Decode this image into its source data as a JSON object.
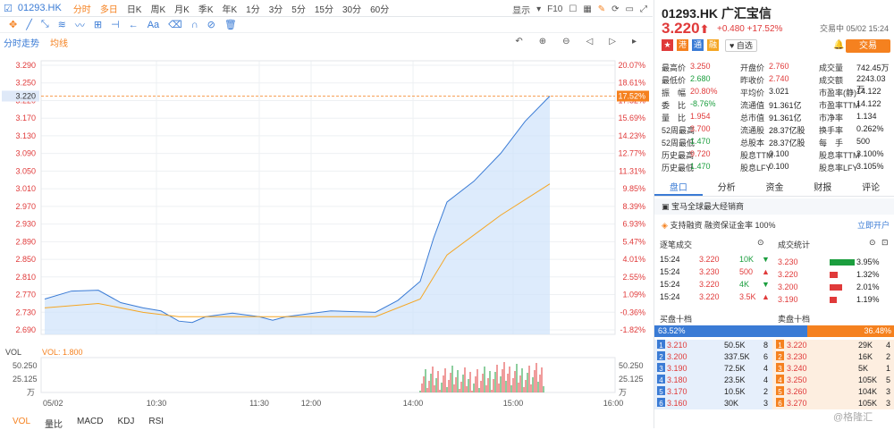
{
  "toolbar": {
    "symbol": "01293.HK",
    "periods": [
      "分时",
      "多日",
      "日K",
      "周K",
      "月K",
      "季K",
      "年K",
      "1分",
      "3分",
      "5分",
      "15分",
      "30分",
      "60分"
    ],
    "active": [
      "分时",
      "多日"
    ],
    "display_label": "显示",
    "f10_label": "F10"
  },
  "subtabs": {
    "intraday": "分时走势",
    "avg": "均线"
  },
  "chart": {
    "y_left": [
      "3.290",
      "3.250",
      "3.220",
      "3.170",
      "3.130",
      "3.090",
      "3.050",
      "3.010",
      "2.970",
      "2.930",
      "2.890",
      "2.850",
      "2.810",
      "2.770",
      "2.730",
      "2.690"
    ],
    "y_right": [
      "20.07%",
      "18.61%",
      "17.52%",
      "15.69%",
      "14.23%",
      "12.77%",
      "11.31%",
      "9.85%",
      "8.39%",
      "6.93%",
      "5.47%",
      "4.01%",
      "2.55%",
      "1.09%",
      "-0.36%",
      "-1.82%"
    ],
    "x_labels": [
      "05/02",
      "10:30",
      "11:30",
      "12:00",
      "14:00",
      "15:00",
      "16:00"
    ],
    "vol_title": "VOL",
    "vol_value": "VOL: 1.800",
    "vol_y": [
      "50.250",
      "25.125",
      "万"
    ],
    "indicators": [
      "VOL",
      "量比",
      "MACD",
      "KDJ",
      "RSI"
    ],
    "chart_data": {
      "type": "line",
      "x": [
        "09:30",
        "10:00",
        "10:30",
        "11:00",
        "11:30",
        "12:00",
        "13:00",
        "13:30",
        "14:00",
        "14:30",
        "15:00",
        "15:24"
      ],
      "series": [
        {
          "values": [
            2.76,
            2.78,
            2.74,
            2.71,
            2.72,
            2.72,
            2.72,
            2.73,
            2.8,
            2.98,
            3.09,
            3.22
          ]
        },
        {
          "values": [
            2.74,
            2.75,
            2.73,
            2.72,
            2.72,
            2.72,
            2.72,
            2.72,
            2.76,
            2.86,
            2.95,
            3.021
          ]
        }
      ],
      "ylim": [
        2.68,
        3.3
      ],
      "prev_close": 2.74,
      "last": 3.22
    }
  },
  "right": {
    "title": "01293.HK 广汇宝信",
    "status": "交易中 05/02 15:24",
    "price": "3.220",
    "change": "+0.480 +17.52%",
    "watch": "自选",
    "trade": "交易",
    "quote": [
      [
        "最高价",
        "3.250",
        "开盘价",
        "2.760",
        "成交量",
        "742.45万"
      ],
      [
        "最低价",
        "2.680",
        "昨收价",
        "2.740",
        "成交额",
        "2243.03万"
      ],
      [
        "振　幅",
        "20.80%",
        "平均价",
        "3.021",
        "市盈率(静)",
        "14.122"
      ],
      [
        "委　比",
        "-8.76%",
        "流通值",
        "91.361亿",
        "市盈率TTM",
        "14.122"
      ],
      [
        "量　比",
        "1.954",
        "总市值",
        "91.361亿",
        "市净率",
        "1.134"
      ],
      [
        "52周最高",
        "3.700",
        "流通股",
        "28.37亿股",
        "换手率",
        "0.262%"
      ],
      [
        "52周最低",
        "1.470",
        "总股本",
        "28.37亿股",
        "每　手",
        "500"
      ],
      [
        "历史最高",
        "9.720",
        "股息TTM",
        "0.100",
        "股息率TTM",
        "3.100%"
      ],
      [
        "历史最低",
        "1.470",
        "股息LFY",
        "0.100",
        "股息率LFY",
        "3.105%"
      ]
    ],
    "tabs": [
      "盘口",
      "分析",
      "资金",
      "财报",
      "评论"
    ],
    "news": "宝马全球最大经销商",
    "margin": "支持融资  融资保证金率 100%",
    "open_account": "立即开户",
    "trades_title": "逐笔成交",
    "trades": [
      [
        "15:24",
        "3.220",
        "10K",
        "d"
      ],
      [
        "15:24",
        "3.230",
        "500",
        "u"
      ],
      [
        "15:24",
        "3.220",
        "4K",
        "d"
      ],
      [
        "15:24",
        "3.220",
        "3.5K",
        "u"
      ]
    ],
    "stats_title": "成交统计",
    "stats": [
      [
        "3.230",
        "3.95%"
      ],
      [
        "3.220",
        "1.32%"
      ],
      [
        "3.200",
        "2.01%"
      ],
      [
        "3.190",
        "1.19%"
      ]
    ],
    "bid_title": "买盘十档",
    "ask_title": "卖盘十档",
    "bid_pct": "63.52%",
    "ask_pct": "36.48%",
    "bids": [
      [
        "1",
        "3.210",
        "50.5K",
        "8"
      ],
      [
        "2",
        "3.200",
        "337.5K",
        "6"
      ],
      [
        "3",
        "3.190",
        "72.5K",
        "4"
      ],
      [
        "4",
        "3.180",
        "23.5K",
        "4"
      ],
      [
        "5",
        "3.170",
        "10.5K",
        "2"
      ],
      [
        "6",
        "3.160",
        "30K",
        "3"
      ]
    ],
    "asks": [
      [
        "1",
        "3.220",
        "29K",
        "4"
      ],
      [
        "2",
        "3.230",
        "16K",
        "2"
      ],
      [
        "3",
        "3.240",
        "5K",
        "1"
      ],
      [
        "4",
        "3.250",
        "105K",
        "5"
      ],
      [
        "5",
        "3.260",
        "104K",
        "3"
      ],
      [
        "6",
        "3.270",
        "105K",
        "3"
      ]
    ],
    "watermark": "@格隆汇"
  }
}
